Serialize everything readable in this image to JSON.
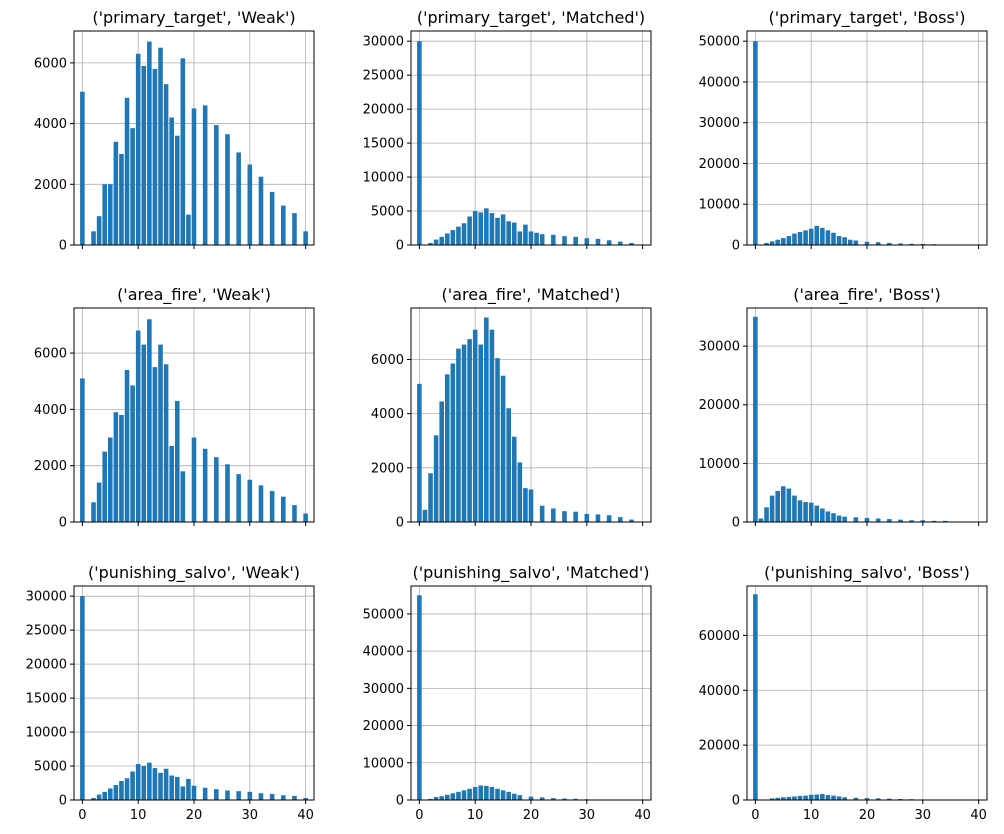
{
  "chart_data": [
    {
      "type": "bar",
      "title": "('primary_target', 'Weak')",
      "xlim": [
        -1.5,
        41.5
      ],
      "ylim": [
        0,
        7050
      ],
      "yticks": [
        0,
        2000,
        4000,
        6000
      ],
      "xticks": [
        0,
        10,
        20,
        30,
        40
      ],
      "show_x_labels": false,
      "grid": true,
      "color": "#1f77b4",
      "x": [
        0,
        2,
        3,
        4,
        5,
        6,
        7,
        8,
        9,
        10,
        11,
        12,
        13,
        14,
        15,
        16,
        17,
        18,
        19,
        20,
        22,
        24,
        26,
        28,
        30,
        32,
        34,
        36,
        38,
        40
      ],
      "values": [
        5050,
        450,
        950,
        2000,
        2000,
        3400,
        3000,
        4850,
        3850,
        6300,
        5900,
        6700,
        5800,
        6500,
        5300,
        4200,
        3600,
        6150,
        1000,
        4500,
        4600,
        3950,
        3650,
        3050,
        2650,
        2250,
        1750,
        1300,
        1050,
        450
      ]
    },
    {
      "type": "bar",
      "title": "('primary_target', 'Matched')",
      "xlim": [
        -1.5,
        41.5
      ],
      "ylim": [
        0,
        31500
      ],
      "yticks": [
        0,
        5000,
        10000,
        15000,
        20000,
        25000,
        30000
      ],
      "xticks": [
        0,
        10,
        20,
        30,
        40
      ],
      "show_x_labels": false,
      "grid": true,
      "color": "#1f77b4",
      "x": [
        0,
        2,
        3,
        4,
        5,
        6,
        7,
        8,
        9,
        10,
        11,
        12,
        13,
        14,
        15,
        16,
        17,
        18,
        19,
        20,
        21,
        22,
        24,
        26,
        28,
        30,
        32,
        34,
        36,
        38
      ],
      "values": [
        30000,
        300,
        800,
        1200,
        1700,
        2200,
        2700,
        3200,
        4200,
        5000,
        4800,
        5400,
        4700,
        4000,
        4500,
        3500,
        3300,
        2000,
        3000,
        2000,
        1800,
        1600,
        1500,
        1300,
        1200,
        1000,
        900,
        700,
        500,
        300
      ]
    },
    {
      "type": "bar",
      "title": "('primary_target', 'Boss')",
      "xlim": [
        -1.5,
        41.5
      ],
      "ylim": [
        0,
        52500
      ],
      "yticks": [
        0,
        10000,
        20000,
        30000,
        40000,
        50000
      ],
      "xticks": [
        0,
        10,
        20,
        30,
        40
      ],
      "show_x_labels": false,
      "grid": true,
      "color": "#1f77b4",
      "x": [
        0,
        2,
        3,
        4,
        5,
        6,
        7,
        8,
        9,
        10,
        11,
        12,
        13,
        14,
        15,
        16,
        17,
        18,
        20,
        22,
        24,
        26,
        28,
        30,
        32
      ],
      "values": [
        50000,
        500,
        900,
        1300,
        1700,
        2200,
        2800,
        3200,
        3600,
        4000,
        4700,
        4200,
        3600,
        3000,
        2200,
        1900,
        1300,
        1100,
        800,
        700,
        500,
        400,
        300,
        250,
        200
      ]
    },
    {
      "type": "bar",
      "title": "('area_fire', 'Weak')",
      "xlim": [
        -1.5,
        41.5
      ],
      "ylim": [
        0,
        7600
      ],
      "yticks": [
        0,
        2000,
        4000,
        6000
      ],
      "xticks": [
        0,
        10,
        20,
        30,
        40
      ],
      "show_x_labels": false,
      "grid": true,
      "color": "#1f77b4",
      "x": [
        0,
        2,
        3,
        4,
        5,
        6,
        7,
        8,
        9,
        10,
        11,
        12,
        13,
        14,
        15,
        16,
        17,
        18,
        20,
        22,
        24,
        26,
        28,
        30,
        32,
        34,
        36,
        38,
        40
      ],
      "values": [
        5100,
        700,
        1400,
        2500,
        3000,
        3900,
        3800,
        5400,
        4850,
        6800,
        6300,
        7200,
        5500,
        6300,
        5600,
        2700,
        4300,
        1800,
        3000,
        2600,
        2300,
        2050,
        1700,
        1500,
        1300,
        1100,
        900,
        600,
        300
      ]
    },
    {
      "type": "bar",
      "title": "('area_fire', 'Matched')",
      "xlim": [
        -1.5,
        41.5
      ],
      "ylim": [
        0,
        7900
      ],
      "yticks": [
        0,
        2000,
        4000,
        6000
      ],
      "xticks": [
        0,
        10,
        20,
        30,
        40
      ],
      "show_x_labels": false,
      "grid": true,
      "color": "#1f77b4",
      "x": [
        0,
        1,
        2,
        3,
        4,
        5,
        6,
        7,
        8,
        9,
        10,
        11,
        12,
        13,
        14,
        15,
        16,
        17,
        18,
        19,
        20,
        22,
        24,
        26,
        28,
        30,
        32,
        34,
        36,
        38
      ],
      "values": [
        5100,
        450,
        1800,
        3200,
        4450,
        5450,
        5850,
        6400,
        6550,
        6750,
        7100,
        6550,
        7550,
        7100,
        6050,
        5400,
        4200,
        3150,
        2200,
        1250,
        1200,
        600,
        500,
        400,
        380,
        300,
        280,
        250,
        180,
        90
      ]
    },
    {
      "type": "bar",
      "title": "('area_fire', 'Boss')",
      "xlim": [
        -1.5,
        41.5
      ],
      "ylim": [
        0,
        36500
      ],
      "yticks": [
        0,
        10000,
        20000,
        30000
      ],
      "xticks": [
        0,
        10,
        20,
        30,
        40
      ],
      "show_x_labels": false,
      "grid": true,
      "color": "#1f77b4",
      "x": [
        0,
        1,
        2,
        3,
        4,
        5,
        6,
        7,
        8,
        9,
        10,
        11,
        12,
        13,
        14,
        15,
        16,
        18,
        20,
        22,
        24,
        26,
        28,
        30,
        32,
        34
      ],
      "values": [
        35000,
        600,
        2500,
        4500,
        5300,
        6100,
        5700,
        4500,
        3700,
        3400,
        3300,
        2800,
        2300,
        1800,
        1500,
        1100,
        900,
        800,
        700,
        600,
        500,
        400,
        300,
        300,
        200,
        200
      ]
    },
    {
      "type": "bar",
      "title": "('punishing_salvo', 'Weak')",
      "xlim": [
        -1.5,
        41.5
      ],
      "ylim": [
        0,
        31500
      ],
      "yticks": [
        0,
        5000,
        10000,
        15000,
        20000,
        25000,
        30000
      ],
      "xticks": [
        0,
        10,
        20,
        30,
        40
      ],
      "show_x_labels": true,
      "grid": true,
      "color": "#1f77b4",
      "x": [
        0,
        2,
        3,
        4,
        5,
        6,
        7,
        8,
        9,
        10,
        11,
        12,
        13,
        14,
        15,
        16,
        17,
        18,
        19,
        20,
        22,
        24,
        26,
        28,
        30,
        32,
        34,
        36,
        38,
        40
      ],
      "values": [
        30000,
        300,
        800,
        1200,
        1700,
        2200,
        2800,
        3200,
        4200,
        5300,
        5000,
        5500,
        4700,
        4000,
        4600,
        3600,
        3400,
        2000,
        3100,
        2100,
        1800,
        1600,
        1400,
        1300,
        1200,
        1000,
        900,
        700,
        600,
        300
      ]
    },
    {
      "type": "bar",
      "title": "('punishing_salvo', 'Matched')",
      "xlim": [
        -1.5,
        41.5
      ],
      "ylim": [
        0,
        57500
      ],
      "yticks": [
        0,
        10000,
        20000,
        30000,
        40000,
        50000
      ],
      "xticks": [
        0,
        10,
        20,
        30,
        40
      ],
      "show_x_labels": true,
      "grid": true,
      "color": "#1f77b4",
      "x": [
        0,
        2,
        3,
        4,
        5,
        6,
        7,
        8,
        9,
        10,
        11,
        12,
        13,
        14,
        15,
        16,
        17,
        18,
        20,
        22,
        24,
        26,
        28,
        30,
        32
      ],
      "values": [
        55000,
        300,
        800,
        1000,
        1400,
        1800,
        2200,
        2600,
        3000,
        3500,
        3900,
        3800,
        3500,
        3000,
        2600,
        2200,
        1700,
        1300,
        900,
        700,
        500,
        400,
        300,
        200,
        100
      ]
    },
    {
      "type": "bar",
      "title": "('punishing_salvo', 'Boss')",
      "xlim": [
        -1.5,
        41.5
      ],
      "ylim": [
        0,
        78000
      ],
      "yticks": [
        0,
        20000,
        40000,
        60000
      ],
      "xticks": [
        0,
        10,
        20,
        30,
        40
      ],
      "show_x_labels": true,
      "grid": true,
      "color": "#1f77b4",
      "x": [
        0,
        3,
        4,
        5,
        6,
        7,
        8,
        9,
        10,
        11,
        12,
        13,
        14,
        15,
        16,
        18,
        20,
        22,
        24,
        26,
        28,
        30
      ],
      "values": [
        75000,
        600,
        800,
        1000,
        1100,
        1300,
        1500,
        1600,
        1900,
        2000,
        2200,
        1800,
        1600,
        1300,
        1000,
        800,
        700,
        600,
        500,
        400,
        300,
        200
      ]
    }
  ]
}
